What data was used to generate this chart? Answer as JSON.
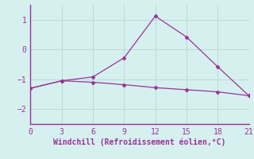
{
  "line1_x": [
    0,
    3,
    6,
    9,
    12,
    15,
    18,
    21
  ],
  "line1_y": [
    -1.3,
    -1.05,
    -0.92,
    -0.28,
    1.12,
    0.42,
    -0.58,
    -1.55
  ],
  "line2_x": [
    0,
    3,
    6,
    9,
    12,
    15,
    18,
    21
  ],
  "line2_y": [
    -1.3,
    -1.05,
    -1.1,
    -1.18,
    -1.28,
    -1.35,
    -1.42,
    -1.55
  ],
  "line_color": "#993399",
  "marker": "D",
  "markersize": 2.5,
  "xlabel": "Windchill (Refroidissement éolien,°C)",
  "xlim": [
    0,
    21
  ],
  "ylim": [
    -2.5,
    1.5
  ],
  "yticks": [
    -2,
    -1,
    0,
    1
  ],
  "xticks": [
    0,
    3,
    6,
    9,
    12,
    15,
    18,
    21
  ],
  "bg_color": "#d6f0ef",
  "grid_color": "#b8dbd8",
  "xlabel_fontsize": 7.0,
  "tick_fontsize": 7.0
}
